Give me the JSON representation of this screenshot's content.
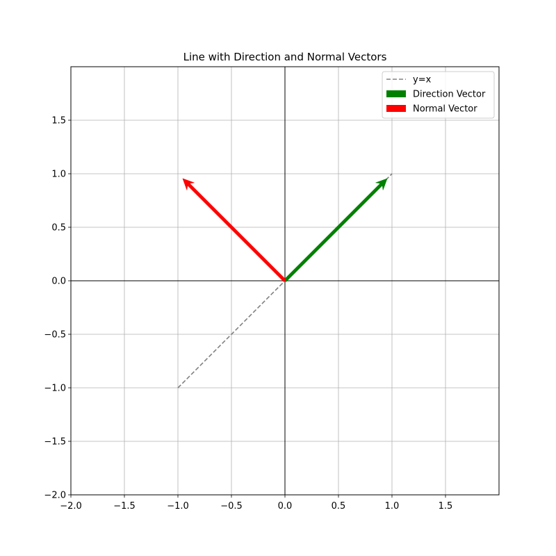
{
  "chart_data": {
    "type": "line",
    "title": "Line with Direction and Normal Vectors",
    "xlabel": "",
    "ylabel": "",
    "xlim": [
      -2,
      2
    ],
    "ylim": [
      -2,
      2
    ],
    "x_ticks": [
      -2.0,
      -1.5,
      -1.0,
      -0.5,
      0.0,
      0.5,
      1.0,
      1.5
    ],
    "y_ticks": [
      -2.0,
      -1.5,
      -1.0,
      -0.5,
      0.0,
      0.5,
      1.0,
      1.5
    ],
    "x_tick_labels": [
      "−2.0",
      "−1.5",
      "−1.0",
      "−0.5",
      "0.0",
      "0.5",
      "1.0",
      "1.5"
    ],
    "y_tick_labels": [
      "−2.0",
      "−1.5",
      "−1.0",
      "−0.5",
      "0.0",
      "0.5",
      "1.0",
      "1.5"
    ],
    "grid": true,
    "axes_lines_at_origin": true,
    "legend_position": "top-right",
    "series": [
      {
        "name": "y=x",
        "kind": "line",
        "style": "dashed",
        "color": "#808080",
        "x": [
          -1,
          1
        ],
        "y": [
          -1,
          1
        ]
      },
      {
        "name": "Direction Vector",
        "kind": "vector",
        "color": "#008000",
        "origin": [
          0,
          0
        ],
        "vector": [
          0.955,
          0.955
        ]
      },
      {
        "name": "Normal Vector",
        "kind": "vector",
        "color": "#ff0000",
        "origin": [
          0,
          0
        ],
        "vector": [
          -0.955,
          0.955
        ]
      }
    ]
  }
}
